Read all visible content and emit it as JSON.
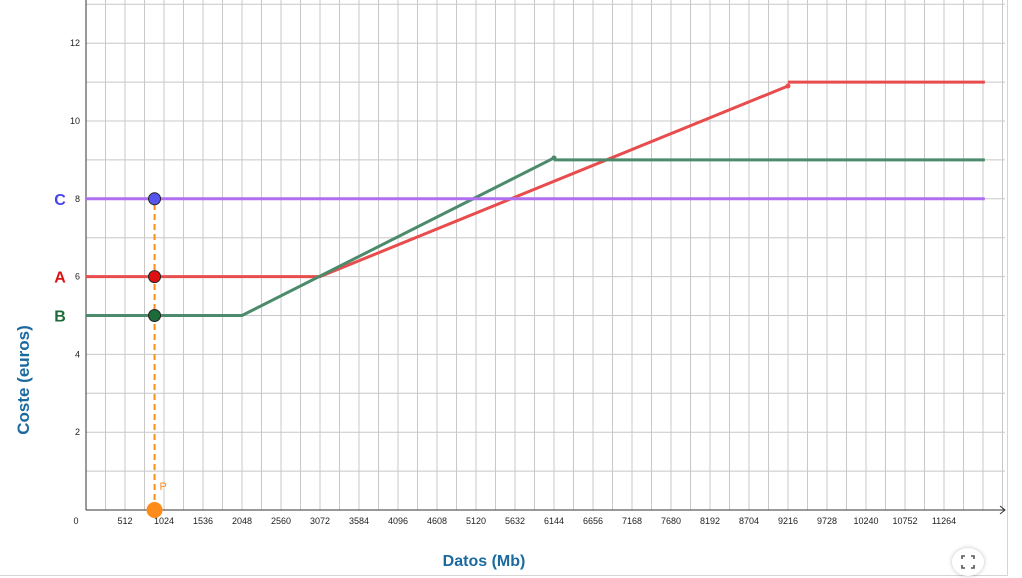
{
  "colors": {
    "grid": "#c8c8c8",
    "axis": "#333333",
    "tick_text": "#222222",
    "series_A": "#e84c4c",
    "series_B": "#4b8b6b",
    "series_C": "#b06ef0",
    "point_C": "#5555ee",
    "point_A": "#dd1111",
    "point_B": "#1e6b3a",
    "point_P": "#ff8c1a",
    "label_A": "#dd1111",
    "label_B": "#1e6b3a",
    "label_C": "#4444ee",
    "title_color": "#1a6aa0"
  },
  "chart_data": {
    "type": "line",
    "xlabel": "Datos (Mb)",
    "ylabel": "Coste (euros)",
    "xlim": [
      0,
      11800
    ],
    "ylim": [
      0,
      13
    ],
    "grid": true,
    "x_ticks": [
      512,
      1024,
      1536,
      2048,
      2560,
      3072,
      3584,
      4096,
      4608,
      5120,
      5632,
      6144,
      6656,
      7168,
      7680,
      8192,
      8704,
      9216,
      9728,
      10240,
      10752,
      11264
    ],
    "y_ticks": [
      2,
      4,
      6,
      8,
      10,
      12
    ],
    "origin_label": "0",
    "series": [
      {
        "name": "A",
        "points": [
          [
            0,
            6
          ],
          [
            3072,
            6
          ],
          [
            9216,
            10.9
          ]
        ],
        "continuation": [
          [
            9216,
            11
          ],
          [
            11800,
            11
          ]
        ]
      },
      {
        "name": "B",
        "points": [
          [
            0,
            5
          ],
          [
            2048,
            5
          ],
          [
            6144,
            9.05
          ]
        ],
        "continuation": [
          [
            6144,
            9
          ],
          [
            11800,
            9
          ]
        ]
      },
      {
        "name": "C",
        "points": [
          [
            0,
            8
          ],
          [
            11800,
            8
          ]
        ],
        "continuation": []
      }
    ],
    "slider_point": {
      "label": "P",
      "x": 900
    },
    "series_labels": [
      "C",
      "A",
      "B"
    ]
  },
  "ui": {
    "fullscreen_icon": "fullscreen-icon"
  }
}
